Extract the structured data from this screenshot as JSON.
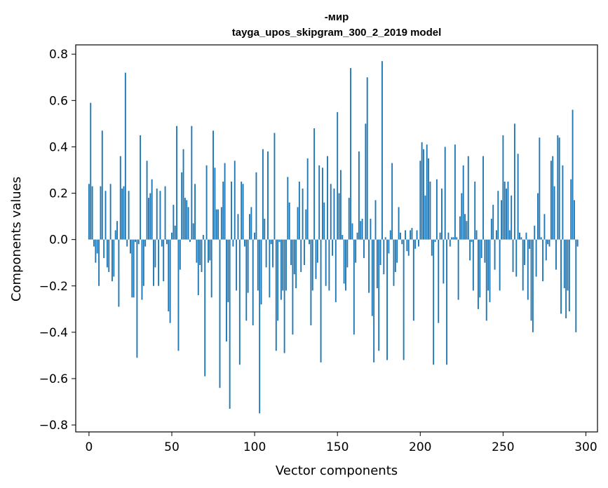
{
  "chart_data": {
    "type": "bar",
    "title": "-мир",
    "subtitle": "tayga_upos_skipgram_300_2_2019 model",
    "xlabel": "Vector components",
    "ylabel": "Components values",
    "xlim": [
      -8,
      307
    ],
    "ylim": [
      -0.83,
      0.84
    ],
    "xticks": [
      0,
      50,
      100,
      150,
      200,
      250,
      300
    ],
    "yticks": [
      -0.8,
      -0.6,
      -0.4,
      -0.2,
      0.0,
      0.2,
      0.4,
      0.6,
      0.8
    ],
    "ytick_labels": [
      "−0.8",
      "−0.6",
      "−0.4",
      "−0.2",
      "0.0",
      "0.2",
      "0.4",
      "0.6",
      "0.8"
    ],
    "xtick_labels": [
      "0",
      "50",
      "100",
      "150",
      "200",
      "250",
      "300"
    ],
    "grid": false,
    "bar_color": "#1f77b4",
    "values": [
      0.24,
      0.59,
      0.23,
      -0.03,
      -0.1,
      -0.06,
      -0.2,
      0.23,
      0.47,
      -0.08,
      0.21,
      -0.12,
      -0.14,
      0.24,
      -0.18,
      -0.16,
      0.04,
      0.08,
      -0.29,
      0.36,
      0.22,
      0.23,
      0.72,
      -0.03,
      0.21,
      -0.06,
      -0.25,
      -0.25,
      -0.01,
      -0.51,
      -0.02,
      0.45,
      -0.26,
      -0.2,
      -0.03,
      0.34,
      0.18,
      0.2,
      0.26,
      -0.2,
      -0.12,
      0.22,
      -0.2,
      0.21,
      -0.03,
      -0.18,
      0.23,
      -0.02,
      -0.31,
      -0.36,
      0.03,
      0.15,
      0.06,
      0.49,
      -0.48,
      -0.13,
      0.29,
      0.39,
      0.18,
      0.17,
      0.14,
      -0.01,
      0.49,
      0.07,
      0.24,
      -0.1,
      -0.24,
      -0.11,
      -0.14,
      0.02,
      -0.59,
      0.32,
      -0.1,
      -0.09,
      -0.25,
      0.47,
      0.31,
      0.13,
      0.13,
      -0.64,
      0.14,
      0.25,
      0.33,
      -0.44,
      -0.27,
      -0.73,
      0.25,
      -0.03,
      0.34,
      -0.22,
      0.11,
      -0.54,
      0.25,
      0.24,
      -0.03,
      -0.35,
      -0.23,
      0.11,
      0.14,
      -0.37,
      0.03,
      0.29,
      -0.22,
      -0.75,
      -0.28,
      0.39,
      0.09,
      -0.12,
      0.38,
      -0.25,
      -0.02,
      -0.12,
      0.46,
      -0.48,
      -0.35,
      -0.01,
      -0.26,
      -0.22,
      -0.49,
      -0.22,
      0.27,
      0.16,
      -0.11,
      -0.41,
      -0.15,
      -0.21,
      0.14,
      0.25,
      -0.14,
      0.22,
      -0.11,
      0.13,
      0.35,
      -0.02,
      -0.37,
      -0.22,
      0.48,
      -0.17,
      -0.1,
      0.32,
      -0.53,
      0.31,
      0.16,
      -0.2,
      0.36,
      -0.22,
      0.24,
      -0.07,
      0.22,
      -0.27,
      0.55,
      0.2,
      0.3,
      0.02,
      -0.19,
      -0.22,
      -0.12,
      0.18,
      0.74,
      0.07,
      -0.41,
      -0.1,
      0.03,
      0.38,
      0.08,
      0.09,
      -0.08,
      0.5,
      0.7,
      -0.23,
      0.09,
      -0.33,
      -0.53,
      0.17,
      -0.21,
      -0.48,
      -0.11,
      0.77,
      -0.15,
      0.01,
      -0.52,
      -0.06,
      0.04,
      0.33,
      -0.2,
      -0.14,
      -0.1,
      0.14,
      0.03,
      -0.02,
      -0.52,
      0.04,
      -0.05,
      -0.07,
      0.04,
      0.05,
      -0.35,
      -0.04,
      0.04,
      -0.03,
      0.34,
      0.42,
      0.39,
      0.19,
      0.41,
      0.35,
      0.25,
      -0.07,
      -0.54,
      -0.01,
      0.26,
      -0.36,
      0.03,
      0.22,
      -0.19,
      0.4,
      -0.54,
      0.03,
      -0.03,
      0.01,
      0.01,
      0.41,
      0.01,
      -0.26,
      0.1,
      0.2,
      0.32,
      0.11,
      0.08,
      0.36,
      -0.09,
      -0.01,
      -0.22,
      0.25,
      0.04,
      -0.3,
      -0.25,
      -0.08,
      0.36,
      -0.1,
      -0.35,
      -0.22,
      -0.27,
      0.09,
      0.15,
      -0.13,
      0.04,
      0.21,
      -0.22,
      0.17,
      0.45,
      0.25,
      0.22,
      0.25,
      0.04,
      0.19,
      -0.14,
      0.5,
      -0.16,
      0.37,
      0.03,
      0.01,
      -0.22,
      -0.11,
      0.03,
      -0.26,
      -0.04,
      -0.35,
      -0.4,
      0.06,
      -0.16,
      0.2,
      0.44,
      0.01,
      -0.18,
      0.11,
      -0.09,
      -0.02,
      -0.03,
      0.34,
      0.36,
      0.23,
      -0.13,
      0.45,
      0.44,
      -0.32,
      0.32,
      -0.21,
      -0.34,
      -0.22,
      -0.31,
      0.26,
      0.56,
      0.17,
      -0.4,
      -0.03
    ]
  }
}
